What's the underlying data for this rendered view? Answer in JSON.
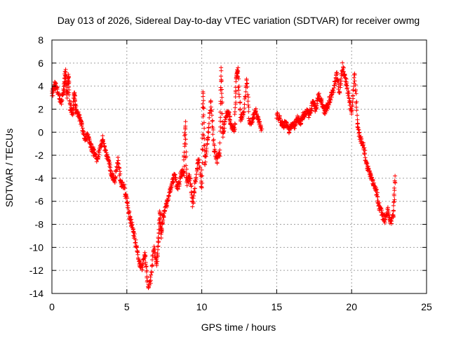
{
  "chart_data": {
    "type": "scatter",
    "title": "Day 013 of 2026, Sidereal Day-to-day VTEC variation (SDTVAR) for receiver owmg",
    "xlabel": "GPS time / hours",
    "ylabel": "SDTVAR / TECUs",
    "xlim": [
      0,
      25
    ],
    "ylim": [
      -14,
      8
    ],
    "xticks": [
      0,
      5,
      10,
      15,
      20,
      25
    ],
    "yticks": [
      -14,
      -12,
      -10,
      -8,
      -6,
      -4,
      -2,
      0,
      2,
      4,
      6,
      8
    ],
    "grid": true,
    "marker": "+",
    "series_color": "#ff0000",
    "trace": [
      [
        0.0,
        3.2
      ],
      [
        0.2,
        4.2
      ],
      [
        0.4,
        3.5
      ],
      [
        0.6,
        2.5
      ],
      [
        0.8,
        3.8
      ],
      [
        0.9,
        5.3
      ],
      [
        1.0,
        3.0
      ],
      [
        1.1,
        5.0
      ],
      [
        1.2,
        2.2
      ],
      [
        1.4,
        1.6
      ],
      [
        1.5,
        3.6
      ],
      [
        1.6,
        2.0
      ],
      [
        1.8,
        1.5
      ],
      [
        2.0,
        0.5
      ],
      [
        2.2,
        -0.6
      ],
      [
        2.4,
        -0.3
      ],
      [
        2.6,
        -1.2
      ],
      [
        2.8,
        -1.8
      ],
      [
        3.0,
        -2.3
      ],
      [
        3.2,
        -1.6
      ],
      [
        3.4,
        -0.4
      ],
      [
        3.6,
        -1.8
      ],
      [
        3.8,
        -2.5
      ],
      [
        4.0,
        -3.8
      ],
      [
        4.2,
        -4.2
      ],
      [
        4.4,
        -2.4
      ],
      [
        4.6,
        -4.4
      ],
      [
        4.8,
        -4.8
      ],
      [
        5.0,
        -6.0
      ],
      [
        5.2,
        -7.5
      ],
      [
        5.4,
        -8.3
      ],
      [
        5.6,
        -9.8
      ],
      [
        5.8,
        -11.2
      ],
      [
        6.0,
        -11.8
      ],
      [
        6.2,
        -10.5
      ],
      [
        6.4,
        -13.3
      ],
      [
        6.6,
        -12.8
      ],
      [
        6.8,
        -10.0
      ],
      [
        7.0,
        -11.5
      ],
      [
        7.1,
        -9.5
      ],
      [
        7.2,
        -7.0
      ],
      [
        7.3,
        -9.0
      ],
      [
        7.4,
        -7.5
      ],
      [
        7.6,
        -6.5
      ],
      [
        7.8,
        -5.6
      ],
      [
        8.0,
        -4.5
      ],
      [
        8.2,
        -3.8
      ],
      [
        8.4,
        -5.0
      ],
      [
        8.6,
        -3.6
      ],
      [
        8.8,
        -3.5
      ],
      [
        8.9,
        0.8
      ],
      [
        9.0,
        -4.5
      ],
      [
        9.2,
        -3.8
      ],
      [
        9.4,
        -6.2
      ],
      [
        9.6,
        -4.0
      ],
      [
        9.8,
        -2.2
      ],
      [
        10.0,
        -4.8
      ],
      [
        10.1,
        3.7
      ],
      [
        10.2,
        -2.8
      ],
      [
        10.4,
        -0.6
      ],
      [
        10.6,
        2.8
      ],
      [
        10.8,
        -1.2
      ],
      [
        11.0,
        -2.5
      ],
      [
        11.2,
        -1.8
      ],
      [
        11.3,
        5.6
      ],
      [
        11.4,
        -0.3
      ],
      [
        11.6,
        1.5
      ],
      [
        11.8,
        1.6
      ],
      [
        12.0,
        0.5
      ],
      [
        12.2,
        0.3
      ],
      [
        12.3,
        4.8
      ],
      [
        12.4,
        5.3
      ],
      [
        12.6,
        1.2
      ],
      [
        12.8,
        1.5
      ],
      [
        13.0,
        4.6
      ],
      [
        13.2,
        0.6
      ],
      [
        13.4,
        1.2
      ],
      [
        13.6,
        1.8
      ],
      [
        13.8,
        1.0
      ],
      [
        14.0,
        0.3
      ],
      [
        15.0,
        1.5
      ],
      [
        15.2,
        1.2
      ],
      [
        15.4,
        0.6
      ],
      [
        15.6,
        0.8
      ],
      [
        15.8,
        0.2
      ],
      [
        16.0,
        0.5
      ],
      [
        16.2,
        0.6
      ],
      [
        16.4,
        1.2
      ],
      [
        16.6,
        0.9
      ],
      [
        16.8,
        1.5
      ],
      [
        17.0,
        1.7
      ],
      [
        17.2,
        1.5
      ],
      [
        17.4,
        2.6
      ],
      [
        17.6,
        2.0
      ],
      [
        17.8,
        3.2
      ],
      [
        18.0,
        2.6
      ],
      [
        18.2,
        1.8
      ],
      [
        18.4,
        2.3
      ],
      [
        18.6,
        3.0
      ],
      [
        18.8,
        3.8
      ],
      [
        19.0,
        5.0
      ],
      [
        19.2,
        3.5
      ],
      [
        19.4,
        5.8
      ],
      [
        19.6,
        4.5
      ],
      [
        19.8,
        3.2
      ],
      [
        20.0,
        1.6
      ],
      [
        20.2,
        5.0
      ],
      [
        20.4,
        0.5
      ],
      [
        20.6,
        -0.6
      ],
      [
        20.8,
        -1.3
      ],
      [
        21.0,
        -2.8
      ],
      [
        21.2,
        -3.5
      ],
      [
        21.4,
        -4.3
      ],
      [
        21.6,
        -4.8
      ],
      [
        21.8,
        -6.2
      ],
      [
        22.0,
        -7.0
      ],
      [
        22.2,
        -7.6
      ],
      [
        22.4,
        -6.8
      ],
      [
        22.6,
        -7.8
      ],
      [
        22.8,
        -7.2
      ],
      [
        22.9,
        -3.8
      ]
    ]
  }
}
